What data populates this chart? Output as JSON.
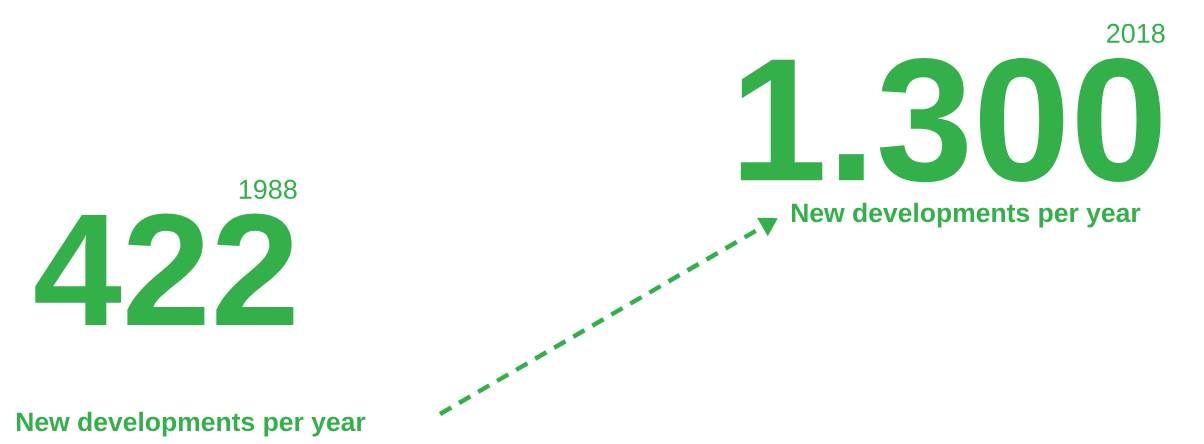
{
  "chart_data": {
    "type": "other",
    "categories": [
      "1988",
      "2018"
    ],
    "values": [
      422,
      1300
    ],
    "value_labels": [
      "422",
      "1.300"
    ],
    "colors": [
      "#33b04a",
      "#33b04a"
    ],
    "annotations": [
      "New developments per year",
      "New developments per year"
    ]
  }
}
